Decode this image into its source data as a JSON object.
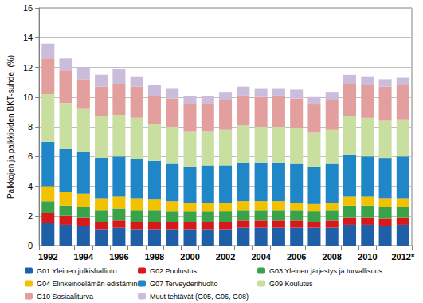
{
  "chart_data": {
    "type": "bar",
    "stacked": true,
    "grid": true,
    "legend": "bottom",
    "y_label": "Palkkojen ja palkkioiden BKT-suhde  (%)",
    "categories": [
      "1992",
      null,
      "1994",
      null,
      "1996",
      null,
      "1998",
      null,
      "2000",
      null,
      "2002",
      null,
      "2004",
      null,
      "2006",
      null,
      "2008",
      null,
      "2010",
      null,
      "2012*"
    ],
    "ylim": [
      0,
      16
    ],
    "yticks": [
      0,
      2,
      4,
      6,
      8,
      10,
      12,
      14,
      16
    ],
    "series": [
      {
        "name": "G01 Yleinen julkishallinto",
        "color": "#1f5fa8",
        "values": [
          1.5,
          1.4,
          1.3,
          1.1,
          1.2,
          1.1,
          1.1,
          1.1,
          1.1,
          1.1,
          1.1,
          1.2,
          1.2,
          1.2,
          1.2,
          1.2,
          1.2,
          1.4,
          1.4,
          1.3,
          1.4
        ]
      },
      {
        "name": "G02 Puolustus",
        "color": "#d7191c",
        "values": [
          0.7,
          0.6,
          0.6,
          0.5,
          0.5,
          0.5,
          0.5,
          0.5,
          0.5,
          0.5,
          0.5,
          0.5,
          0.5,
          0.5,
          0.5,
          0.4,
          0.5,
          0.5,
          0.5,
          0.5,
          0.5
        ]
      },
      {
        "name": "G03 Yleinen järjestys ja turvallisuus",
        "color": "#3aa34a",
        "values": [
          0.8,
          0.7,
          0.7,
          0.8,
          0.8,
          0.8,
          0.8,
          0.7,
          0.7,
          0.7,
          0.7,
          0.7,
          0.7,
          0.7,
          0.7,
          0.7,
          0.7,
          0.8,
          0.8,
          0.8,
          0.7
        ]
      },
      {
        "name": "G04 Elinkeinoelämän edistäminen",
        "color": "#f2c200",
        "values": [
          1.0,
          0.9,
          0.9,
          0.8,
          0.8,
          0.8,
          0.7,
          0.7,
          0.6,
          0.6,
          0.6,
          0.6,
          0.6,
          0.6,
          0.5,
          0.5,
          0.5,
          0.6,
          0.6,
          0.6,
          0.6
        ]
      },
      {
        "name": "G07 Terveydenhuolto",
        "color": "#1f86c8",
        "values": [
          3.0,
          2.9,
          2.8,
          2.7,
          2.7,
          2.6,
          2.6,
          2.5,
          2.4,
          2.5,
          2.5,
          2.6,
          2.6,
          2.6,
          2.6,
          2.5,
          2.6,
          2.8,
          2.7,
          2.7,
          2.8
        ]
      },
      {
        "name": "G09 Koulutus",
        "color": "#c8dfa0",
        "values": [
          3.2,
          3.1,
          2.9,
          2.8,
          2.8,
          2.8,
          2.5,
          2.5,
          2.4,
          2.3,
          2.4,
          2.5,
          2.4,
          2.4,
          2.4,
          2.3,
          2.3,
          2.6,
          2.6,
          2.5,
          2.5
        ]
      },
      {
        "name": "G10 Sosiaaliturva",
        "color": "#e39e9e",
        "values": [
          2.4,
          2.2,
          2.0,
          2.0,
          2.1,
          2.1,
          1.9,
          1.9,
          1.8,
          1.9,
          2.0,
          2.0,
          2.0,
          2.1,
          2.0,
          1.9,
          2.0,
          2.2,
          2.2,
          2.3,
          2.3
        ]
      },
      {
        "name": "Muut tehtävät (G05, G06, G08)",
        "color": "#cbbcdc",
        "values": [
          1.0,
          0.8,
          0.8,
          0.8,
          1.0,
          0.7,
          0.7,
          0.7,
          0.6,
          0.5,
          0.5,
          0.6,
          0.6,
          0.5,
          0.6,
          0.5,
          0.5,
          0.6,
          0.6,
          0.5,
          0.5
        ]
      }
    ]
  }
}
